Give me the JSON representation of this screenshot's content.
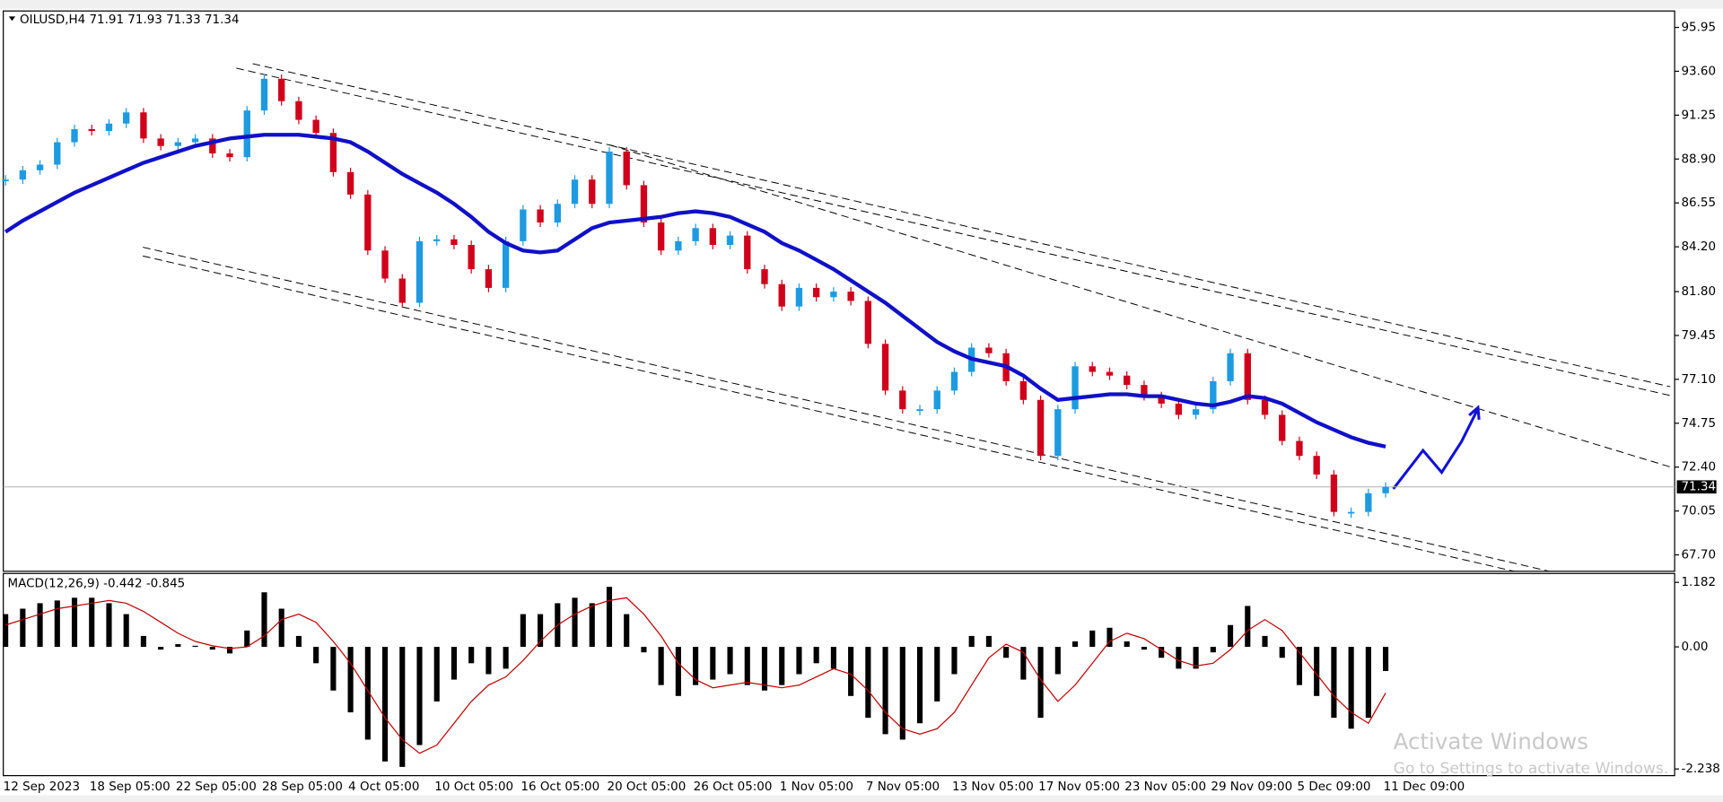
{
  "chart_data": [
    {
      "type": "candlestick",
      "title": "OILUSD,H4  71.91 71.93 71.33 71.34",
      "categories": [
        "12 Sep 2023",
        null,
        null,
        null,
        null,
        "18 Sep 05:00",
        null,
        null,
        null,
        null,
        "22 Sep 05:00",
        null,
        null,
        null,
        null,
        "28 Sep 05:00",
        null,
        null,
        null,
        null,
        "4 Oct 05:00",
        null,
        null,
        null,
        null,
        "10 Oct 05:00",
        null,
        null,
        null,
        null,
        "16 Oct 05:00",
        null,
        null,
        null,
        null,
        "20 Oct 05:00",
        null,
        null,
        null,
        null,
        "26 Oct 05:00",
        null,
        null,
        null,
        null,
        "1 Nov 05:00",
        null,
        null,
        null,
        null,
        "7 Nov 05:00",
        null,
        null,
        null,
        null,
        "13 Nov 05:00",
        null,
        null,
        null,
        null,
        "17 Nov 05:00",
        null,
        null,
        null,
        null,
        "23 Nov 05:00",
        null,
        null,
        null,
        null,
        "29 Nov 09:00",
        null,
        null,
        null,
        null,
        "5 Dec 09:00",
        null,
        null,
        null,
        null,
        "11 Dec 09:00"
      ],
      "closes": [
        87.8,
        88.3,
        88.6,
        89.8,
        90.5,
        90.4,
        90.8,
        91.4,
        90.0,
        89.6,
        89.8,
        90.0,
        89.2,
        89.0,
        91.5,
        93.2,
        92.0,
        91.0,
        90.3,
        88.2,
        87.0,
        84.0,
        82.5,
        81.2,
        84.5,
        84.6,
        84.3,
        83.0,
        82.0,
        84.5,
        86.2,
        85.5,
        86.5,
        87.8,
        86.5,
        89.3,
        87.5,
        85.5,
        84.0,
        84.5,
        85.2,
        84.3,
        84.8,
        83.0,
        82.2,
        81.0,
        82.0,
        81.5,
        81.8,
        81.3,
        79.0,
        76.5,
        75.5,
        75.5,
        76.5,
        77.5,
        78.8,
        78.5,
        77.0,
        76.0,
        73.0,
        75.5,
        77.8,
        77.5,
        77.3,
        76.8,
        76.2,
        75.8,
        75.2,
        75.5,
        77.0,
        78.5,
        76.0,
        75.2,
        73.8,
        73.0,
        72.0,
        70.0,
        70.0,
        71.0,
        71.34
      ],
      "up_color": "#1e9be0",
      "down_color": "#d0021b",
      "ma_values": [
        85.0,
        85.6,
        86.1,
        86.6,
        87.1,
        87.5,
        87.9,
        88.3,
        88.7,
        89.0,
        89.3,
        89.6,
        89.8,
        90.0,
        90.1,
        90.2,
        90.2,
        90.2,
        90.1,
        90.0,
        89.8,
        89.3,
        88.7,
        88.1,
        87.6,
        87.1,
        86.5,
        85.8,
        85.0,
        84.4,
        84.0,
        83.9,
        84.0,
        84.6,
        85.2,
        85.5,
        85.6,
        85.7,
        85.8,
        86.0,
        86.1,
        86.0,
        85.8,
        85.4,
        85.0,
        84.4,
        84.0,
        83.5,
        83.0,
        82.4,
        81.8,
        81.2,
        80.5,
        79.8,
        79.1,
        78.6,
        78.2,
        78.0,
        77.8,
        77.3,
        76.6,
        76.0,
        76.1,
        76.2,
        76.3,
        76.3,
        76.2,
        76.2,
        76.0,
        75.8,
        75.7,
        75.9,
        76.2,
        76.1,
        75.8,
        75.3,
        74.8,
        74.4,
        74.0,
        73.7,
        73.5
      ],
      "ma_color": "#1010c8",
      "ylim": [
        66.82,
        96.83
      ],
      "yticks": [
        95.95,
        {
          "value": 93.6,
          "label": "93.60"
        },
        91.25,
        {
          "value": 88.9,
          "label": "88.90"
        },
        86.55,
        {
          "value": 84.2,
          "label": "84.20"
        },
        {
          "value": 81.8,
          "label": "81.80"
        },
        79.45,
        {
          "value": 77.1,
          "label": "77.10"
        },
        74.75,
        {
          "value": 72.4,
          "label": "72.40"
        },
        70.05,
        {
          "value": 67.7,
          "label": "67.70"
        }
      ]
    },
    {
      "type": "macd",
      "title": "MACD(12,26,9) -0.442 -0.845",
      "histogram": [
        0.6,
        0.7,
        0.8,
        0.85,
        0.9,
        0.9,
        0.8,
        0.6,
        0.2,
        -0.05,
        0.05,
        0.02,
        -0.05,
        -0.12,
        0.3,
        1.0,
        0.7,
        0.2,
        -0.3,
        -0.8,
        -1.2,
        -1.7,
        -2.1,
        -2.2,
        -1.8,
        -1.0,
        -0.6,
        -0.3,
        -0.5,
        -0.4,
        0.6,
        0.6,
        0.8,
        0.9,
        0.8,
        1.1,
        0.6,
        -0.1,
        -0.7,
        -0.9,
        -0.7,
        -0.6,
        -0.5,
        -0.7,
        -0.8,
        -0.7,
        -0.5,
        -0.3,
        -0.4,
        -0.9,
        -1.3,
        -1.6,
        -1.7,
        -1.4,
        -1.0,
        -0.5,
        0.2,
        0.2,
        -0.2,
        -0.6,
        -1.3,
        -0.5,
        0.1,
        0.3,
        0.35,
        0.1,
        -0.05,
        -0.2,
        -0.4,
        -0.4,
        -0.1,
        0.4,
        0.75,
        0.2,
        -0.2,
        -0.7,
        -0.9,
        -1.3,
        -1.5,
        -1.3,
        -0.442
      ],
      "signal": [
        0.4,
        0.5,
        0.6,
        0.7,
        0.75,
        0.8,
        0.85,
        0.8,
        0.65,
        0.45,
        0.25,
        0.1,
        0.02,
        -0.03,
        0.0,
        0.2,
        0.5,
        0.6,
        0.45,
        0.1,
        -0.3,
        -0.8,
        -1.3,
        -1.7,
        -1.95,
        -1.8,
        -1.4,
        -1.0,
        -0.7,
        -0.55,
        -0.25,
        0.1,
        0.4,
        0.6,
        0.75,
        0.85,
        0.9,
        0.6,
        0.2,
        -0.3,
        -0.6,
        -0.75,
        -0.7,
        -0.65,
        -0.7,
        -0.75,
        -0.7,
        -0.55,
        -0.4,
        -0.5,
        -0.8,
        -1.2,
        -1.5,
        -1.6,
        -1.5,
        -1.2,
        -0.7,
        -0.2,
        0.05,
        -0.1,
        -0.6,
        -1.0,
        -0.7,
        -0.3,
        0.1,
        0.25,
        0.15,
        -0.05,
        -0.25,
        -0.35,
        -0.3,
        -0.05,
        0.3,
        0.5,
        0.3,
        -0.1,
        -0.5,
        -0.9,
        -1.2,
        -1.4,
        -0.845
      ],
      "bar_color": "#000000",
      "signal_color": "#c00000",
      "ylim": [
        -2.36,
        1.345
      ],
      "yticks": [
        1.182,
        {
          "value": 0,
          "label": "0.00"
        },
        -2.238
      ]
    }
  ],
  "watermark": {
    "title": "Activate Windows",
    "subtitle": "Go to Settings to activate Windows."
  }
}
